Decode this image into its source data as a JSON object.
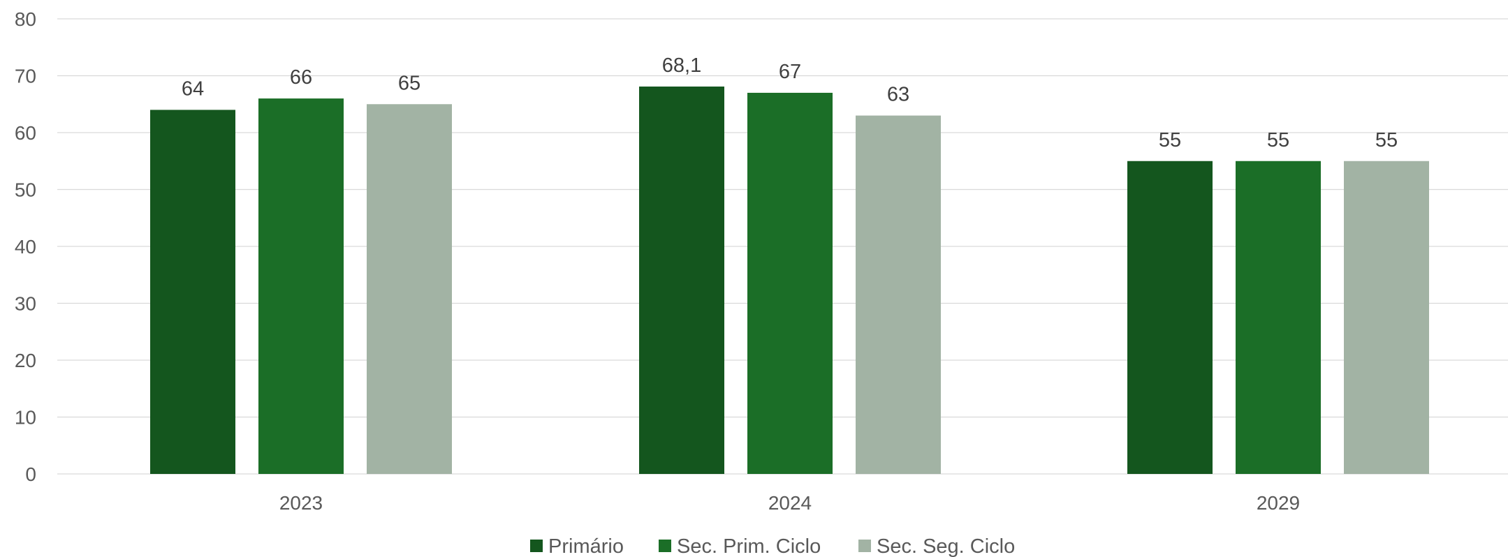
{
  "chart_data": {
    "type": "bar",
    "title": "",
    "xlabel": "",
    "ylabel": "",
    "ylim": [
      0,
      80
    ],
    "yticks": [
      0,
      10,
      20,
      30,
      40,
      50,
      60,
      70,
      80
    ],
    "grid": true,
    "legend_position": "bottom",
    "categories": [
      "2023",
      "2024",
      "2029"
    ],
    "series": [
      {
        "name": "Primário",
        "color": "#14561e",
        "values": [
          64,
          68.1,
          55
        ],
        "labels": [
          "64",
          "68,1",
          "55"
        ]
      },
      {
        "name": "Sec. Prim. Ciclo",
        "color": "#1b6e27",
        "values": [
          66,
          67,
          55
        ],
        "labels": [
          "66",
          "67",
          "55"
        ]
      },
      {
        "name": "Sec. Seg. Ciclo",
        "color": "#a2b3a4",
        "values": [
          65,
          63,
          55
        ],
        "labels": [
          "65",
          "63",
          "55"
        ]
      }
    ]
  }
}
